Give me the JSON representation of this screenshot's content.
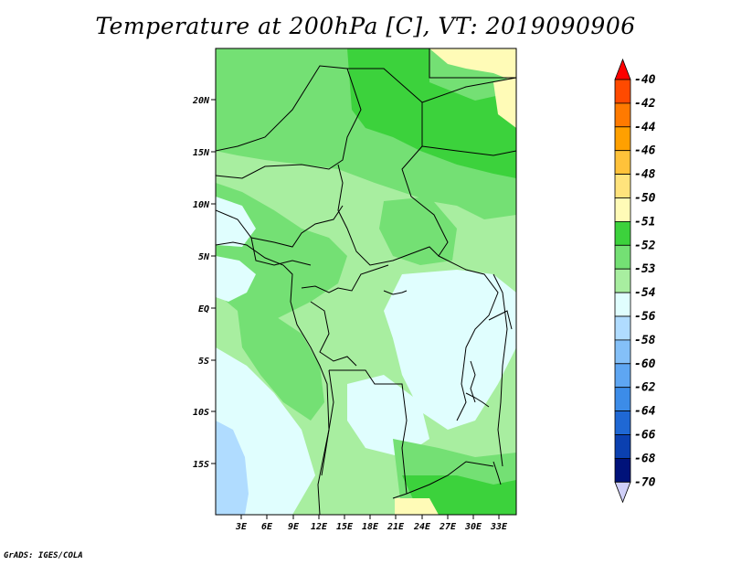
{
  "title": "Temperature at 200hPa [C], VT: 2019090906",
  "credit": "GrADS: IGES/COLA",
  "map": {
    "lat_ticks": [
      "20N",
      "15N",
      "10N",
      "5N",
      "EQ",
      "5S",
      "10S",
      "15S"
    ],
    "lon_ticks": [
      "3E",
      "6E",
      "9E",
      "12E",
      "15E",
      "18E",
      "21E",
      "24E",
      "27E",
      "30E",
      "33E"
    ]
  },
  "colorbar": {
    "labels": [
      "-40",
      "-42",
      "-44",
      "-46",
      "-48",
      "-50",
      "-51",
      "-52",
      "-53",
      "-54",
      "-56",
      "-58",
      "-60",
      "-62",
      "-64",
      "-66",
      "-68",
      "-70"
    ],
    "colors": [
      "#fe0000",
      "#ff4a00",
      "#ff7a00",
      "#ffa000",
      "#ffc23a",
      "#ffe37c",
      "#fffbb7",
      "#3cd23c",
      "#74e074",
      "#a8eea0",
      "#e0fefe",
      "#b0dcff",
      "#84c0f8",
      "#5ea6f2",
      "#3c8ce8",
      "#1f68d4",
      "#0b40b0",
      "#00127a",
      "#d0d0f8"
    ]
  }
}
